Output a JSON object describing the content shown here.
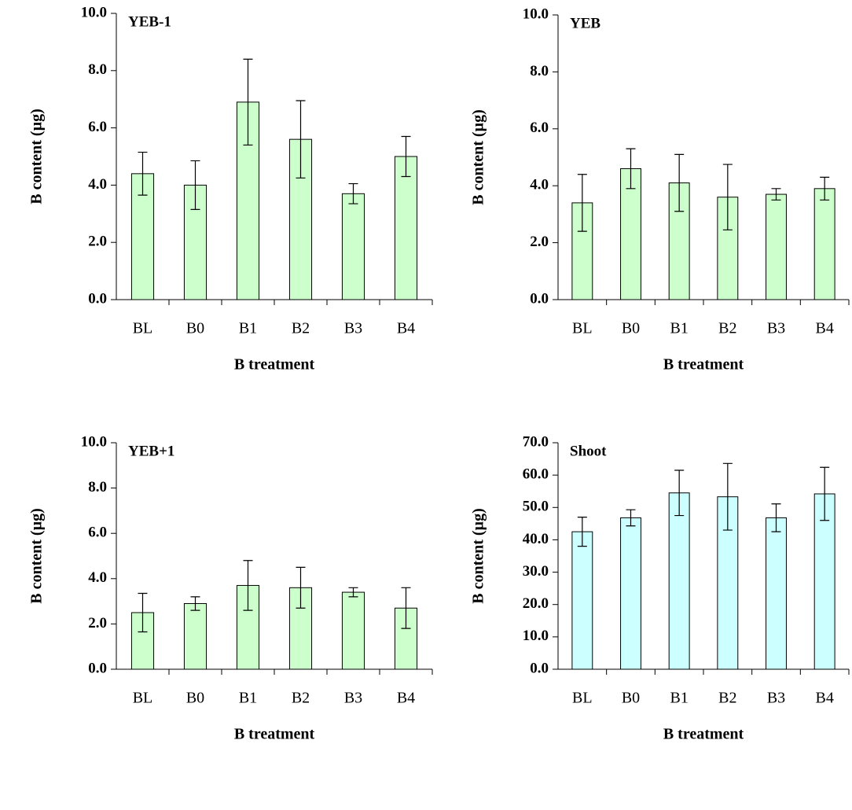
{
  "chart_data": [
    {
      "type": "bar",
      "title": "YEB-1",
      "x_label": "B treatment",
      "y_label": "B content (µg)",
      "categories": [
        "BL",
        "B0",
        "B1",
        "B2",
        "B3",
        "B4"
      ],
      "values": [
        4.4,
        4.0,
        6.9,
        5.6,
        3.7,
        5.0
      ],
      "errors": [
        0.75,
        0.85,
        1.5,
        1.35,
        0.35,
        0.7
      ],
      "color": "#ccffcc",
      "ylim": [
        0,
        10
      ],
      "yticks": [
        {
          "value": 0,
          "label": "0.0"
        },
        {
          "value": 2,
          "label": "2.0"
        },
        {
          "value": 4,
          "label": "4.0"
        },
        {
          "value": 6,
          "label": "6.0"
        },
        {
          "value": 8,
          "label": "8.0"
        },
        {
          "value": 10,
          "label": "10.0"
        }
      ]
    },
    {
      "type": "bar",
      "title": "YEB",
      "x_label": "B treatment",
      "y_label": "B content (µg)",
      "categories": [
        "BL",
        "B0",
        "B1",
        "B2",
        "B3",
        "B4"
      ],
      "values": [
        3.4,
        4.6,
        4.1,
        3.6,
        3.7,
        3.9
      ],
      "errors": [
        1.0,
        0.7,
        1.0,
        1.15,
        0.2,
        0.4
      ],
      "color": "#ccffcc",
      "ylim": [
        0,
        10
      ],
      "yticks": [
        {
          "value": 0,
          "label": "0.0"
        },
        {
          "value": 2,
          "label": "2.0"
        },
        {
          "value": 4,
          "label": "4.0"
        },
        {
          "value": 6,
          "label": "6.0"
        },
        {
          "value": 8,
          "label": "8.0"
        },
        {
          "value": 10,
          "label": "10.0"
        }
      ]
    },
    {
      "type": "bar",
      "title": "YEB+1",
      "x_label": "B treatment",
      "y_label": "B content (µg)",
      "categories": [
        "BL",
        "B0",
        "B1",
        "B2",
        "B3",
        "B4"
      ],
      "values": [
        2.5,
        2.9,
        3.7,
        3.6,
        3.4,
        2.7
      ],
      "errors": [
        0.85,
        0.3,
        1.1,
        0.9,
        0.2,
        0.9
      ],
      "color": "#ccffcc",
      "ylim": [
        0,
        10
      ],
      "yticks": [
        {
          "value": 0,
          "label": "0.0"
        },
        {
          "value": 2,
          "label": "2.0"
        },
        {
          "value": 4,
          "label": "4.0"
        },
        {
          "value": 6,
          "label": "6.0"
        },
        {
          "value": 8,
          "label": "8.0"
        },
        {
          "value": 10,
          "label": "10.0"
        }
      ]
    },
    {
      "type": "bar",
      "title": "Shoot",
      "x_label": "B treatment",
      "y_label": "B content (µg)",
      "categories": [
        "BL",
        "B0",
        "B1",
        "B2",
        "B3",
        "B4"
      ],
      "values": [
        42.5,
        46.8,
        54.5,
        53.3,
        46.8,
        54.2
      ],
      "errors": [
        4.5,
        2.5,
        7.0,
        10.3,
        4.3,
        8.2
      ],
      "color": "#ccffff",
      "ylim": [
        0,
        70
      ],
      "yticks": [
        {
          "value": 0,
          "label": "0.0"
        },
        {
          "value": 10,
          "label": "10.0"
        },
        {
          "value": 20,
          "label": "20.0"
        },
        {
          "value": 30,
          "label": "30.0"
        },
        {
          "value": 40,
          "label": "40.0"
        },
        {
          "value": 50,
          "label": "50.0"
        },
        {
          "value": 60,
          "label": "60.0"
        },
        {
          "value": 70,
          "label": "70.0"
        }
      ]
    }
  ]
}
